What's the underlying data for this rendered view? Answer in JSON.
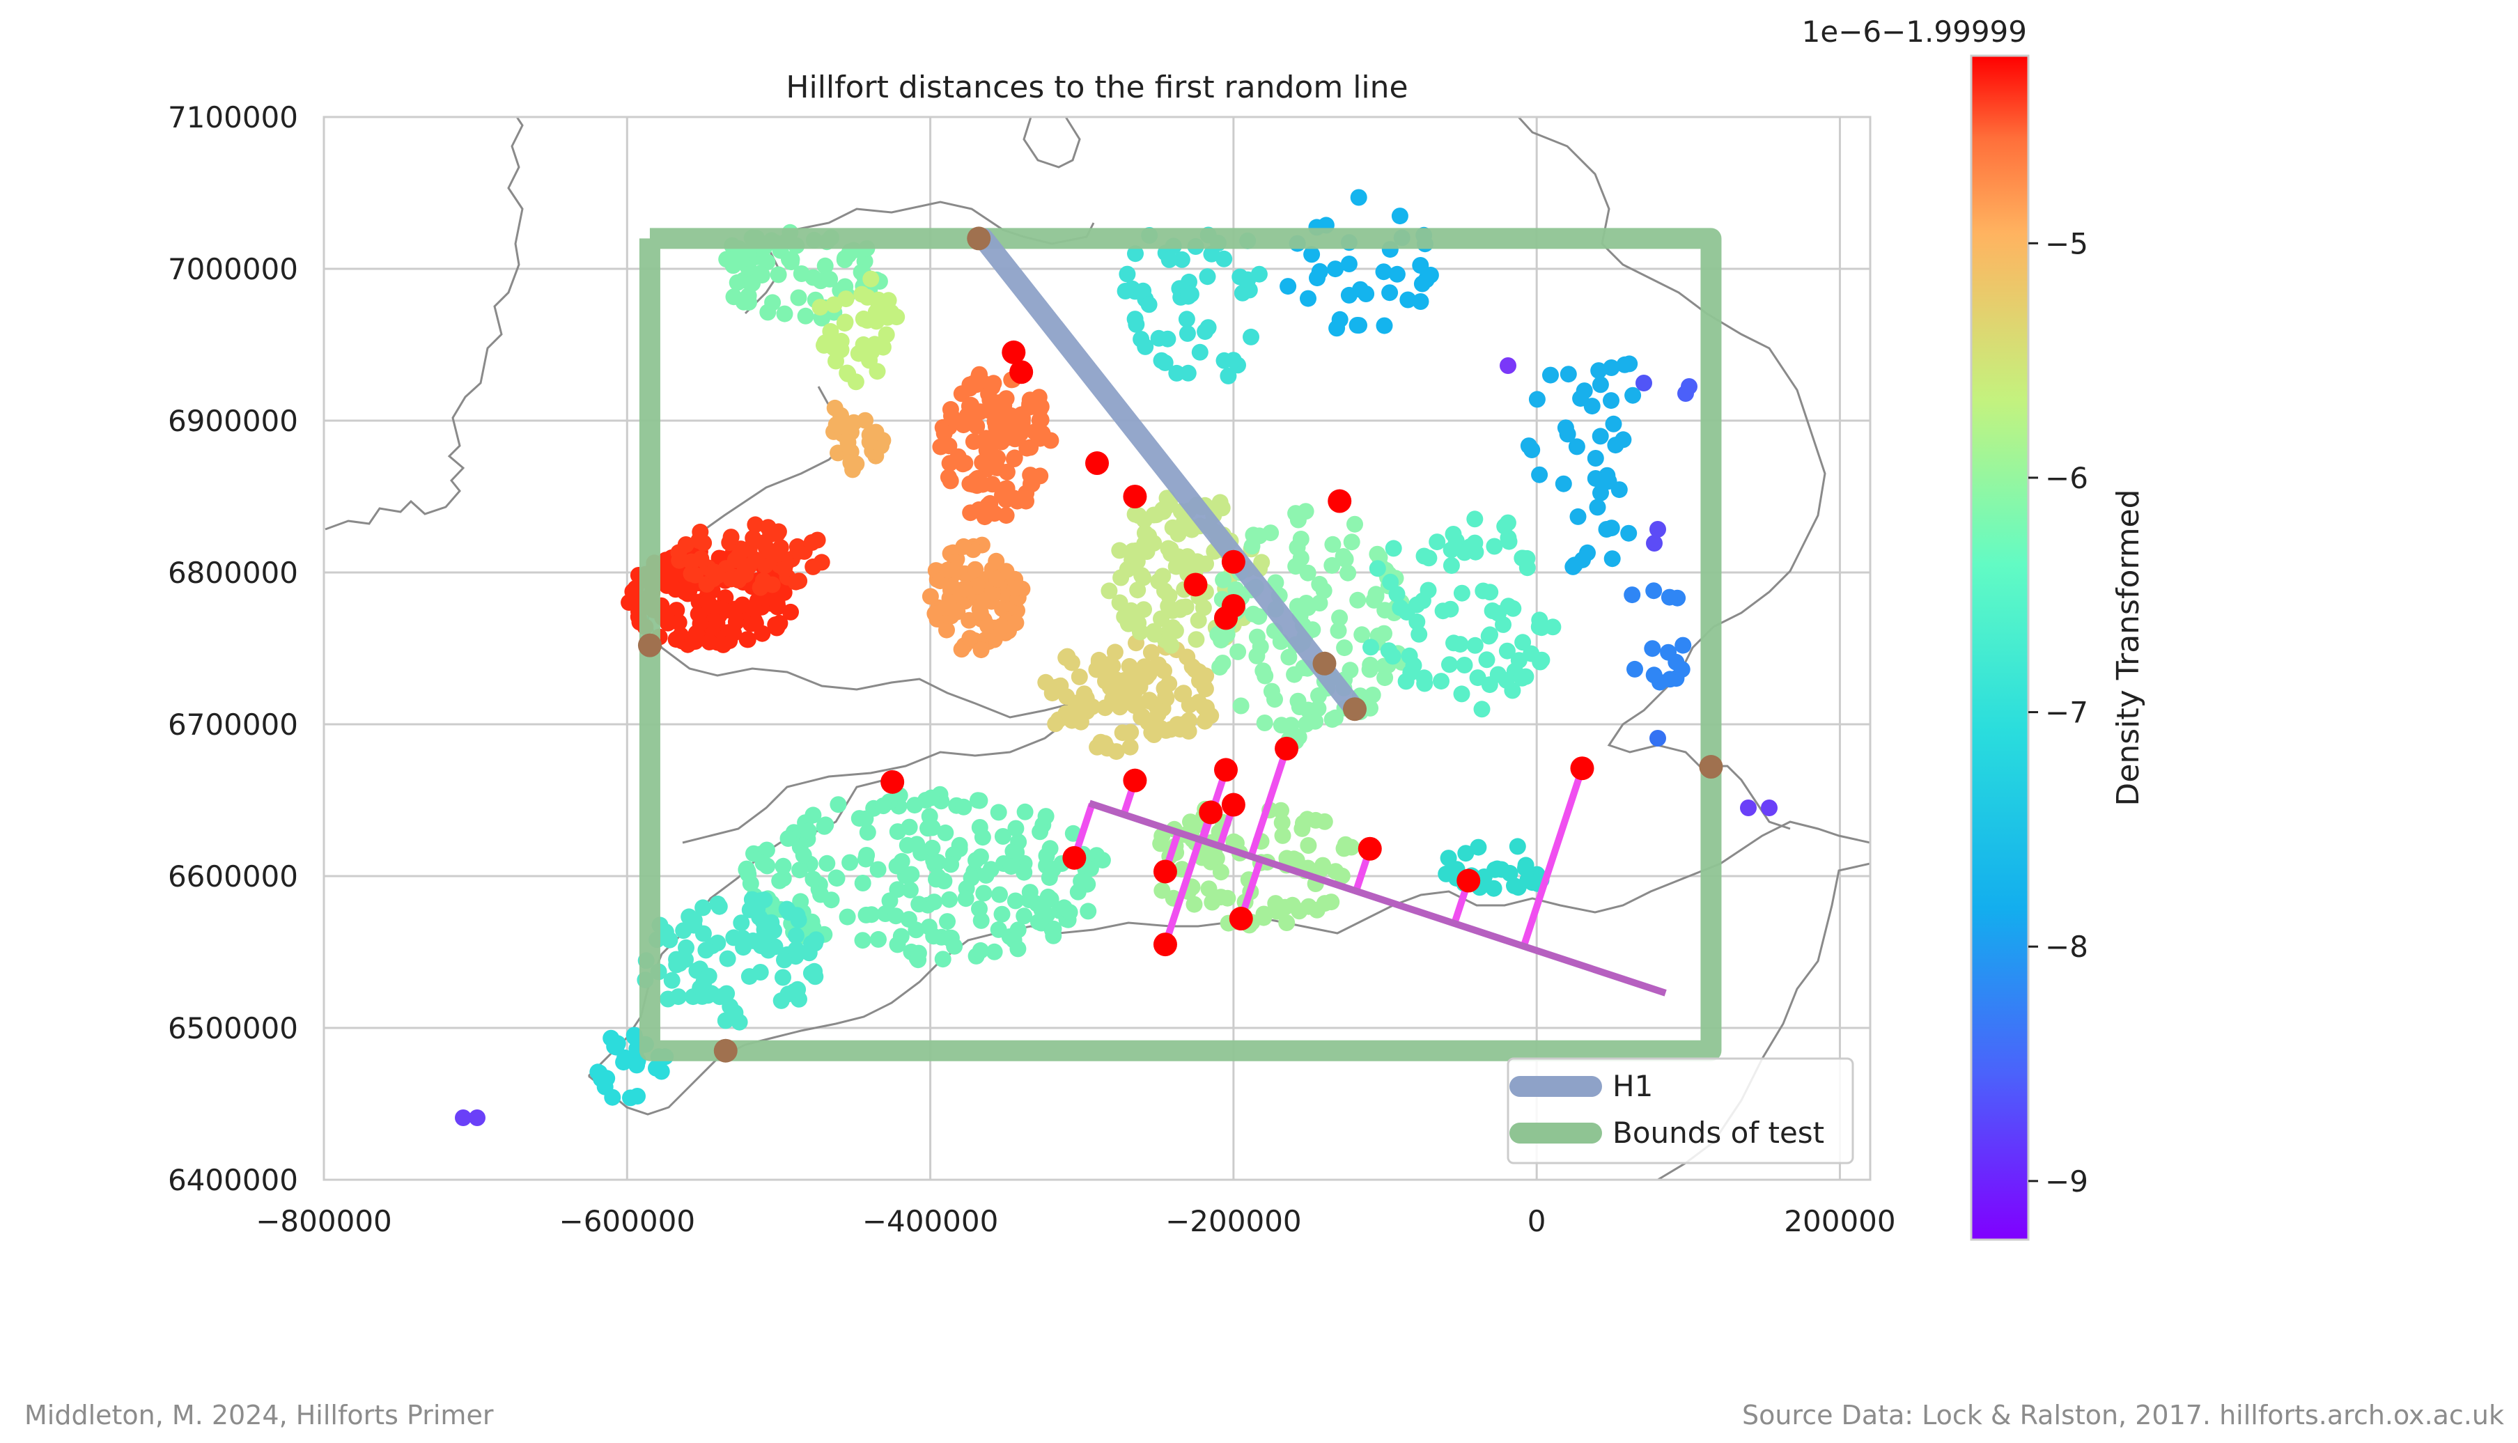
{
  "chart_data": {
    "type": "scatter",
    "title": "Hillfort distances to the first random line",
    "xlabel": "",
    "ylabel": "",
    "xlim": [
      -800000,
      220000
    ],
    "ylim": [
      6400000,
      7100000
    ],
    "x_ticks": [
      -800000,
      -600000,
      -400000,
      -200000,
      0,
      200000
    ],
    "x_tick_labels": [
      "−800000",
      "−600000",
      "−400000",
      "−200000",
      "0",
      "200000"
    ],
    "y_ticks": [
      6400000,
      6500000,
      6600000,
      6700000,
      6800000,
      6900000,
      7000000,
      7100000
    ],
    "y_tick_labels": [
      "6400000",
      "6500000",
      "6600000",
      "6700000",
      "6800000",
      "6900000",
      "7000000",
      "7100000"
    ],
    "grid": true,
    "legend_position": "bottom-right",
    "legend": [
      {
        "label": "H1",
        "color": "#8ea2c8"
      },
      {
        "label": "Bounds of test",
        "color": "#8fc493"
      }
    ],
    "colorbar": {
      "label": "Density Transformed",
      "offset_text": "1e−6−1.99999",
      "ticks": [
        -5,
        -6,
        -7,
        -8,
        -9
      ],
      "tick_labels": [
        "−5",
        "−6",
        "−7",
        "−8",
        "−9"
      ],
      "range": [
        -9.25,
        -4.2
      ],
      "colormap": "rainbow"
    },
    "series": [
      {
        "name": "H1",
        "type": "line",
        "color": "#8ea2c8",
        "x": [
          -365000,
          -120000
        ],
        "y": [
          7020000,
          6710000
        ]
      },
      {
        "name": "Bounds of test",
        "type": "line",
        "color": "#8fc493",
        "x": [
          -585000,
          115000,
          115000,
          -585000,
          -585000
        ],
        "y": [
          7020000,
          7020000,
          6485000,
          6485000,
          7020000
        ]
      },
      {
        "type": "line",
        "color": "#b660c0",
        "x": [
          -295000,
          85000
        ],
        "y": [
          6648000,
          6523000
        ]
      },
      {
        "type": "scatter",
        "color": "#a0714f",
        "x": [
          -585000,
          -368000,
          -120000,
          115000,
          -535000,
          -140000
        ],
        "y": [
          6752000,
          7020000,
          6710000,
          6672000,
          6485000,
          6740000
        ]
      },
      {
        "type": "scatter",
        "color": "#ff0000",
        "x": [
          -345000,
          -340000,
          -290000,
          -265000,
          -225000,
          -205000,
          -200000,
          -130000,
          -425000,
          -265000,
          -205000,
          -200000,
          -215000,
          -165000,
          -305000,
          -245000,
          -195000,
          -245000,
          -110000,
          -45000,
          30000,
          -200000
        ],
        "y": [
          6945000,
          6932000,
          6872000,
          6850000,
          6792000,
          6770000,
          6778000,
          6847000,
          6662000,
          6663000,
          6670000,
          6647000,
          6642000,
          6684000,
          6612000,
          6603000,
          6572000,
          6555000,
          6618000,
          6597000,
          6671000,
          6807000
        ]
      }
    ]
  },
  "footer": {
    "left": "Middleton, M. 2024, Hillforts Primer",
    "right": "Source Data: Lock & Ralston, 2017. hillforts.arch.ox.ac.uk"
  }
}
